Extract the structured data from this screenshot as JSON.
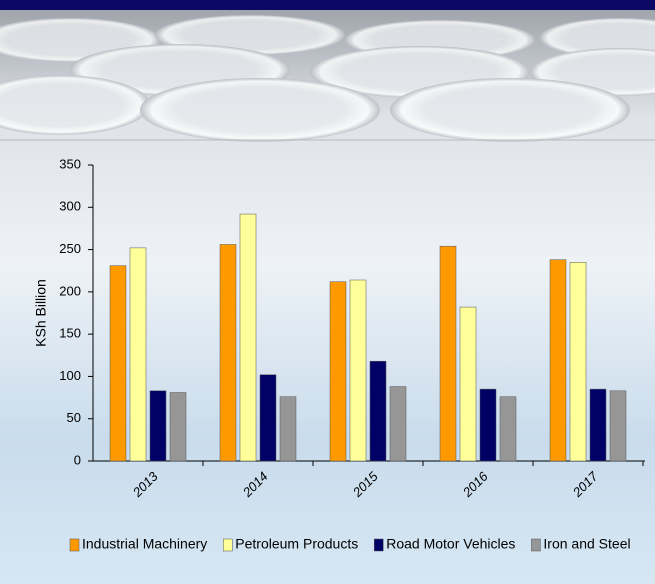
{
  "chart_data": {
    "type": "bar",
    "ylabel": "KSh Billion",
    "categories": [
      "2013",
      "2014",
      "2015",
      "2016",
      "2017"
    ],
    "series": [
      {
        "name": "Industrial Machinery",
        "color": "#ff9900",
        "values": [
          231,
          256,
          212,
          254,
          238
        ]
      },
      {
        "name": "Petroleum Products",
        "color": "#ffff99",
        "values": [
          252,
          292,
          214,
          182,
          235
        ]
      },
      {
        "name": "Road Motor Vehicles",
        "color": "#000066",
        "values": [
          83,
          102,
          118,
          85,
          85
        ]
      },
      {
        "name": "Iron and Steel",
        "color": "#969696",
        "values": [
          81,
          76,
          88,
          76,
          83
        ]
      }
    ],
    "ylim": [
      0,
      350
    ],
    "yticks": [
      0,
      50,
      100,
      150,
      200,
      250,
      300,
      350
    ],
    "grid": false,
    "legend": "bottom"
  }
}
